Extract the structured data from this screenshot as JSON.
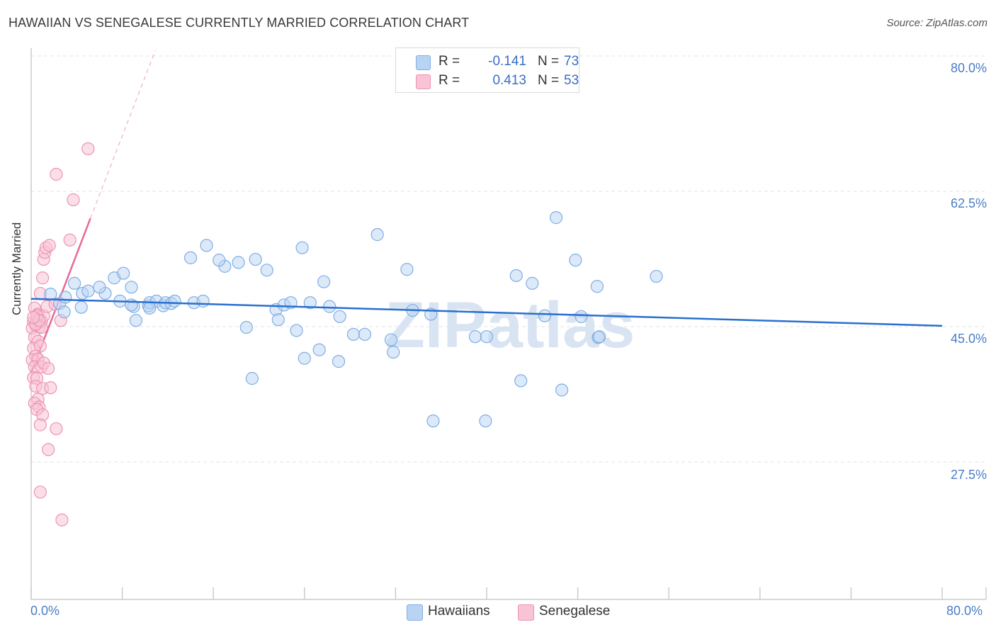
{
  "title": "HAWAIIAN VS SENEGALESE CURRENTLY MARRIED CORRELATION CHART",
  "source": "Source: ZipAtlas.com",
  "watermark": "ZIPatlas",
  "colors": {
    "blue_fill": "#b9d3f3",
    "blue_stroke": "#7faee4",
    "blue_line": "#2a6fcf",
    "pink_fill": "#f8c4d5",
    "pink_stroke": "#ee93b1",
    "pink_line": "#e8689a",
    "grid": "#e3e3e3",
    "tick_text": "#4a7cc7"
  },
  "legend": {
    "rows": [
      {
        "r_label": "R =",
        "r_value": "-0.141",
        "n_label": "N =",
        "n_value": "73"
      },
      {
        "r_label": "R =",
        "r_value": "0.413",
        "n_label": "N =",
        "n_value": "53"
      }
    ]
  },
  "bottom_legend": {
    "series1": "Hawaiians",
    "series2": "Senegalese"
  },
  "y_ticks": [
    "80.0%",
    "62.5%",
    "45.0%",
    "27.5%"
  ],
  "x_ticks": {
    "left": "0.0%",
    "right": "80.0%"
  },
  "chart_data": {
    "type": "scatter",
    "title": "HAWAIIAN VS SENEGALESE CURRENTLY MARRIED CORRELATION CHART",
    "xlabel": "",
    "ylabel": "Currently Married",
    "xlim": [
      0,
      80
    ],
    "ylim": [
      10,
      80
    ],
    "y_tick_values": [
      80.0,
      62.5,
      45.0,
      27.5
    ],
    "series": [
      {
        "name": "Hawaiians",
        "trend": {
          "x": [
            0,
            80
          ],
          "y": [
            48.6,
            45.1
          ]
        },
        "points": [
          [
            1.7,
            49.2
          ],
          [
            2.5,
            48.0
          ],
          [
            3.0,
            48.8
          ],
          [
            4.5,
            49.3
          ],
          [
            3.8,
            50.6
          ],
          [
            6.5,
            49.3
          ],
          [
            7.3,
            51.3
          ],
          [
            8.1,
            51.9
          ],
          [
            5.0,
            49.6
          ],
          [
            6.0,
            50.1
          ],
          [
            7.8,
            48.3
          ],
          [
            9.0,
            47.6
          ],
          [
            8.8,
            50.1
          ],
          [
            9.2,
            45.8
          ],
          [
            10.3,
            47.7
          ],
          [
            10.4,
            48.1
          ],
          [
            11.0,
            48.3
          ],
          [
            11.6,
            47.7
          ],
          [
            11.8,
            48.1
          ],
          [
            12.3,
            48.0
          ],
          [
            12.6,
            48.3
          ],
          [
            14.0,
            53.9
          ],
          [
            15.4,
            55.5
          ],
          [
            14.3,
            48.1
          ],
          [
            15.1,
            48.3
          ],
          [
            17.0,
            52.8
          ],
          [
            16.5,
            53.6
          ],
          [
            18.2,
            53.3
          ],
          [
            18.9,
            44.9
          ],
          [
            19.7,
            53.7
          ],
          [
            20.7,
            52.3
          ],
          [
            19.4,
            38.3
          ],
          [
            21.5,
            47.2
          ],
          [
            22.2,
            47.8
          ],
          [
            22.8,
            48.1
          ],
          [
            21.7,
            45.9
          ],
          [
            23.3,
            44.5
          ],
          [
            23.8,
            55.2
          ],
          [
            24.0,
            40.9
          ],
          [
            24.5,
            48.1
          ],
          [
            25.3,
            42.0
          ],
          [
            25.7,
            50.8
          ],
          [
            26.2,
            47.6
          ],
          [
            27.1,
            46.3
          ],
          [
            27.0,
            40.5
          ],
          [
            28.3,
            44.0
          ],
          [
            29.3,
            44.0
          ],
          [
            30.4,
            56.9
          ],
          [
            31.6,
            43.3
          ],
          [
            31.8,
            41.7
          ],
          [
            33.0,
            52.4
          ],
          [
            33.5,
            47.1
          ],
          [
            35.1,
            46.6
          ],
          [
            35.3,
            32.8
          ],
          [
            39.0,
            43.7
          ],
          [
            40.0,
            43.7
          ],
          [
            39.9,
            32.8
          ],
          [
            42.6,
            51.6
          ],
          [
            43.0,
            38.0
          ],
          [
            44.0,
            50.6
          ],
          [
            45.1,
            46.4
          ],
          [
            46.1,
            59.1
          ],
          [
            46.6,
            36.8
          ],
          [
            47.8,
            53.6
          ],
          [
            48.3,
            46.3
          ],
          [
            49.8,
            43.6
          ],
          [
            49.7,
            50.2
          ],
          [
            54.9,
            51.5
          ],
          [
            49.9,
            43.7
          ],
          [
            8.8,
            47.8
          ],
          [
            10.4,
            47.4
          ],
          [
            2.9,
            46.9
          ],
          [
            4.4,
            47.5
          ]
        ]
      },
      {
        "name": "Senegalese",
        "trend": {
          "x": [
            0,
            5.2
          ],
          "y": [
            39.0,
            59.0
          ]
        },
        "trend_dashed": {
          "x": [
            5.2,
            10.9
          ],
          "y": [
            59.0,
            80.7
          ]
        },
        "points": [
          [
            0.3,
            47.4
          ],
          [
            0.6,
            46.6
          ],
          [
            0.2,
            45.6
          ],
          [
            0.4,
            45.2
          ],
          [
            0.7,
            45.0
          ],
          [
            0.1,
            44.8
          ],
          [
            0.9,
            45.7
          ],
          [
            0.5,
            46.0
          ],
          [
            1.1,
            46.4
          ],
          [
            1.4,
            47.6
          ],
          [
            2.1,
            47.9
          ],
          [
            0.8,
            49.3
          ],
          [
            1.0,
            51.3
          ],
          [
            1.1,
            53.7
          ],
          [
            1.2,
            54.6
          ],
          [
            1.3,
            55.2
          ],
          [
            1.6,
            55.5
          ],
          [
            0.3,
            43.6
          ],
          [
            0.6,
            43.1
          ],
          [
            0.2,
            42.2
          ],
          [
            0.8,
            42.5
          ],
          [
            0.4,
            41.2
          ],
          [
            0.1,
            40.7
          ],
          [
            0.6,
            40.8
          ],
          [
            0.3,
            39.8
          ],
          [
            0.9,
            39.8
          ],
          [
            1.1,
            40.3
          ],
          [
            1.5,
            39.6
          ],
          [
            0.2,
            38.4
          ],
          [
            0.5,
            38.3
          ],
          [
            0.4,
            37.3
          ],
          [
            1.0,
            37.0
          ],
          [
            1.7,
            37.1
          ],
          [
            0.6,
            35.6
          ],
          [
            0.3,
            35.1
          ],
          [
            0.7,
            34.6
          ],
          [
            0.5,
            34.3
          ],
          [
            1.0,
            33.6
          ],
          [
            0.8,
            32.3
          ],
          [
            2.2,
            31.8
          ],
          [
            1.5,
            29.1
          ],
          [
            3.4,
            56.2
          ],
          [
            2.2,
            64.7
          ],
          [
            3.7,
            61.4
          ],
          [
            5.0,
            68.0
          ],
          [
            0.8,
            23.6
          ],
          [
            2.7,
            20.0
          ],
          [
            0.5,
            46.4
          ],
          [
            0.9,
            44.9
          ],
          [
            2.6,
            45.8
          ],
          [
            0.4,
            45.3
          ],
          [
            0.7,
            45.8
          ],
          [
            0.2,
            46.2
          ]
        ]
      }
    ]
  }
}
